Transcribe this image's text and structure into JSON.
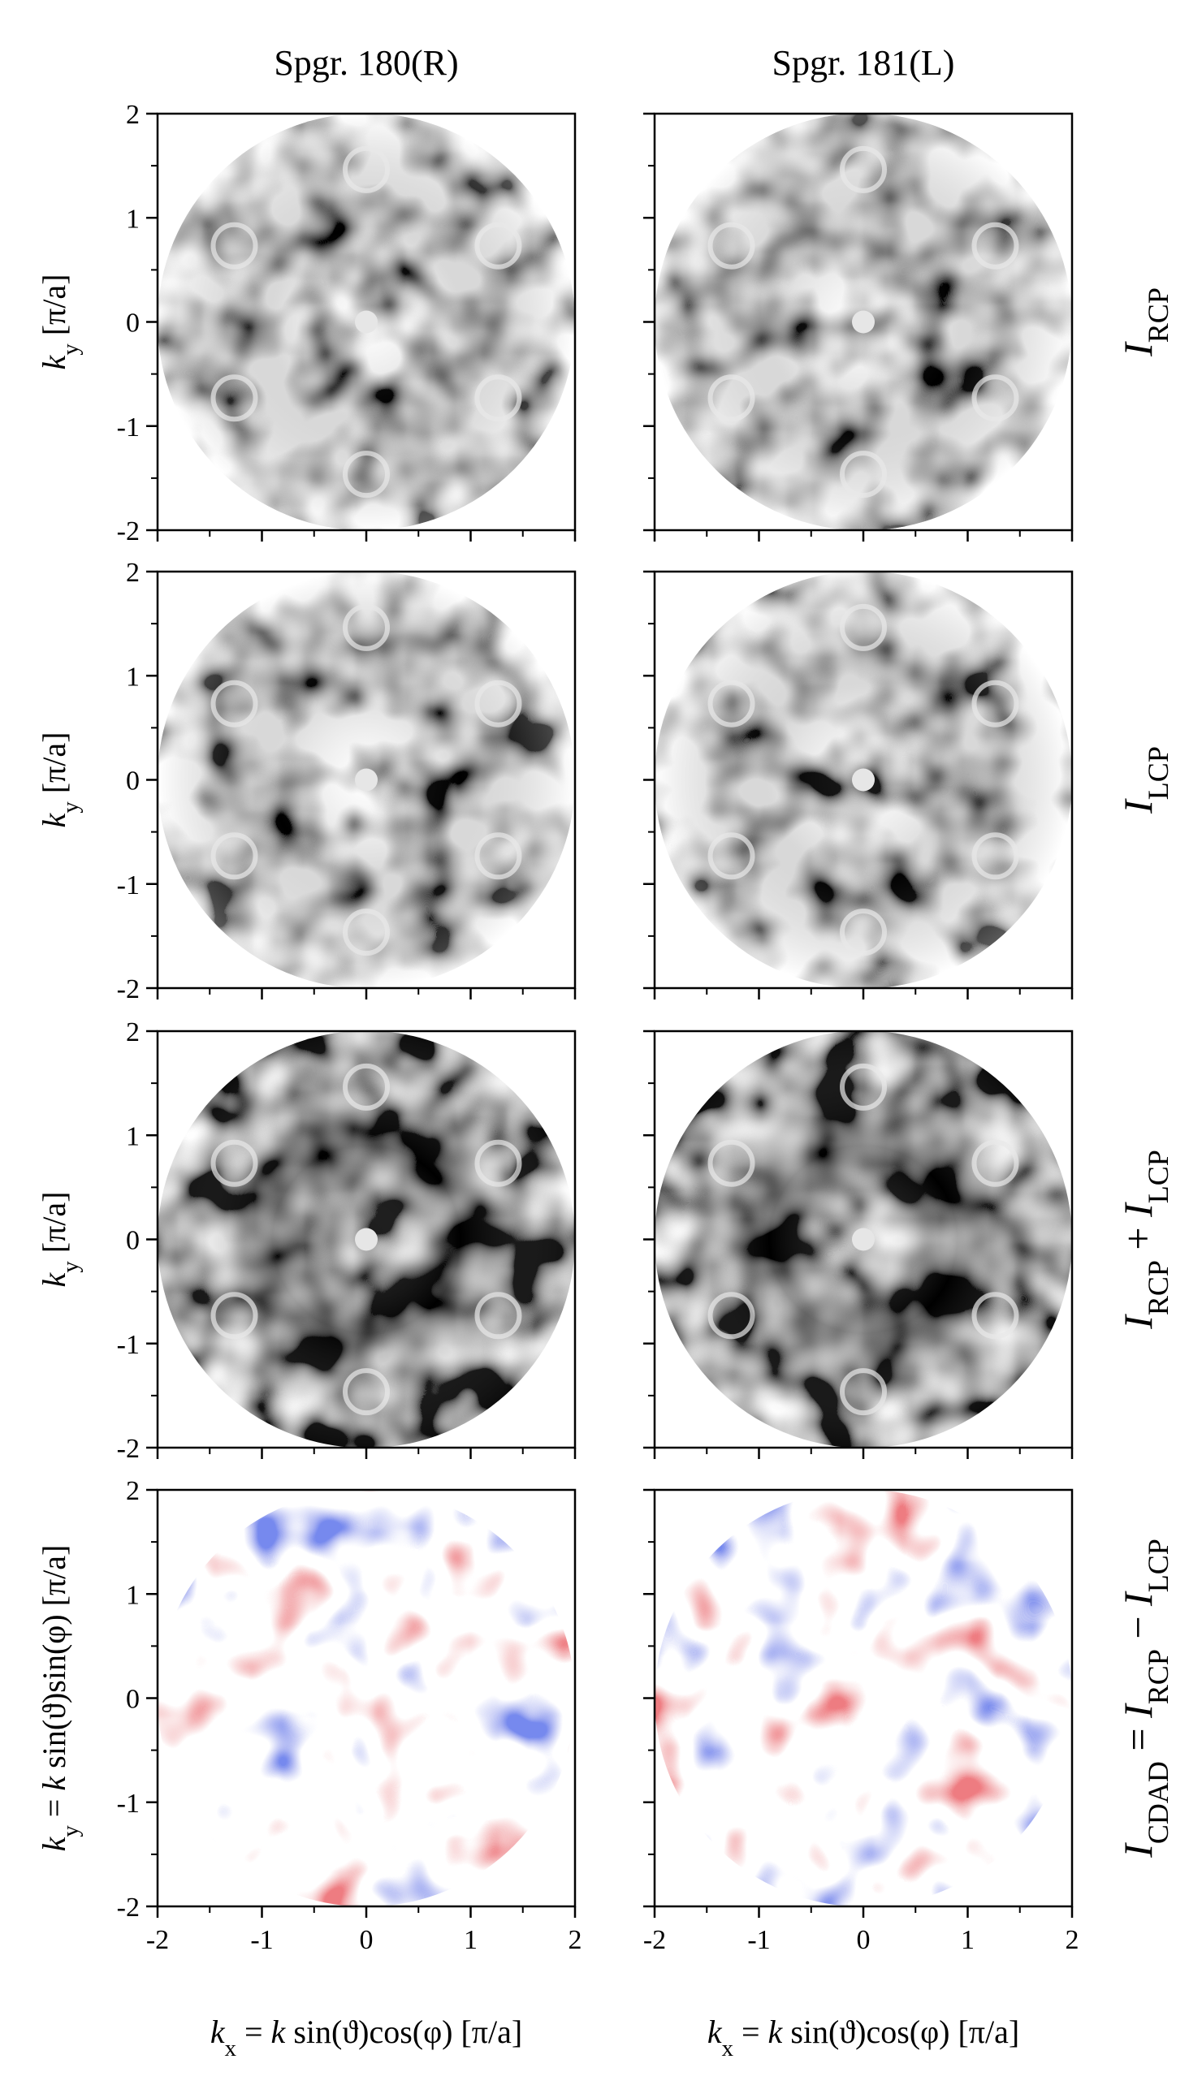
{
  "figure": {
    "column_titles": [
      "Spgr. 180(R)",
      "Spgr. 181(L)"
    ],
    "row_labels": [
      [
        {
          "text": "I",
          "style": "italic"
        },
        {
          "text": "RCP",
          "style": "sub"
        }
      ],
      [
        {
          "text": "I",
          "style": "italic"
        },
        {
          "text": "LCP",
          "style": "sub"
        }
      ],
      [
        {
          "text": "I",
          "style": "italic"
        },
        {
          "text": "RCP",
          "style": "sub"
        },
        {
          "text": " + "
        },
        {
          "text": "I",
          "style": "italic"
        },
        {
          "text": "LCP",
          "style": "sub"
        }
      ],
      [
        {
          "text": "I",
          "style": "italic"
        },
        {
          "text": "CDAD",
          "style": "sub"
        },
        {
          "text": " = "
        },
        {
          "text": "I",
          "style": "italic"
        },
        {
          "text": "RCP",
          "style": "sub"
        },
        {
          "text": " − "
        },
        {
          "text": "I",
          "style": "italic"
        },
        {
          "text": "LCP",
          "style": "sub"
        }
      ]
    ]
  },
  "chart_data": [
    {
      "type": "heatmap",
      "colormap": "gray",
      "xlim": [
        -2,
        2
      ],
      "ylim": [
        -2,
        2
      ],
      "xticks": [
        -2,
        -1,
        0,
        1,
        2
      ],
      "yticks": [
        -2,
        -1,
        0,
        1,
        2
      ],
      "xminor": [
        -1.5,
        -0.5,
        0.5,
        1.5
      ],
      "yminor": [
        -1.5,
        -0.5,
        0.5,
        1.5
      ],
      "show_xtick_labels": false,
      "show_ytick_labels": true,
      "ylabel": [
        {
          "text": "k",
          "style": "italic"
        },
        {
          "text": "y",
          "style": "sub"
        },
        {
          "text": " [π/a]"
        }
      ]
    },
    {
      "type": "heatmap",
      "colormap": "gray",
      "xlim": [
        -2,
        2
      ],
      "ylim": [
        -2,
        2
      ],
      "xticks": [
        -2,
        -1,
        0,
        1,
        2
      ],
      "yticks": [
        -2,
        -1,
        0,
        1,
        2
      ],
      "xminor": [
        -1.5,
        -0.5,
        0.5,
        1.5
      ],
      "yminor": [
        -1.5,
        -0.5,
        0.5,
        1.5
      ],
      "show_xtick_labels": false,
      "show_ytick_labels": false
    },
    {
      "type": "heatmap",
      "colormap": "gray",
      "xlim": [
        -2,
        2
      ],
      "ylim": [
        -2,
        2
      ],
      "xticks": [
        -2,
        -1,
        0,
        1,
        2
      ],
      "yticks": [
        -2,
        -1,
        0,
        1,
        2
      ],
      "xminor": [
        -1.5,
        -0.5,
        0.5,
        1.5
      ],
      "yminor": [
        -1.5,
        -0.5,
        0.5,
        1.5
      ],
      "show_xtick_labels": false,
      "show_ytick_labels": true,
      "ylabel": [
        {
          "text": "k",
          "style": "italic"
        },
        {
          "text": "y",
          "style": "sub"
        },
        {
          "text": " [π/a]"
        }
      ]
    },
    {
      "type": "heatmap",
      "colormap": "gray",
      "xlim": [
        -2,
        2
      ],
      "ylim": [
        -2,
        2
      ],
      "xticks": [
        -2,
        -1,
        0,
        1,
        2
      ],
      "yticks": [
        -2,
        -1,
        0,
        1,
        2
      ],
      "xminor": [
        -1.5,
        -0.5,
        0.5,
        1.5
      ],
      "yminor": [
        -1.5,
        -0.5,
        0.5,
        1.5
      ],
      "show_xtick_labels": false,
      "show_ytick_labels": false
    },
    {
      "type": "heatmap",
      "colormap": "dark-gray",
      "xlim": [
        -2,
        2
      ],
      "ylim": [
        -2,
        2
      ],
      "xticks": [
        -2,
        -1,
        0,
        1,
        2
      ],
      "yticks": [
        -2,
        -1,
        0,
        1,
        2
      ],
      "xminor": [
        -1.5,
        -0.5,
        0.5,
        1.5
      ],
      "yminor": [
        -1.5,
        -0.5,
        0.5,
        1.5
      ],
      "show_xtick_labels": false,
      "show_ytick_labels": true,
      "ylabel": [
        {
          "text": "k",
          "style": "italic"
        },
        {
          "text": "y",
          "style": "sub"
        },
        {
          "text": " [π/a]"
        }
      ]
    },
    {
      "type": "heatmap",
      "colormap": "dark-gray",
      "xlim": [
        -2,
        2
      ],
      "ylim": [
        -2,
        2
      ],
      "xticks": [
        -2,
        -1,
        0,
        1,
        2
      ],
      "yticks": [
        -2,
        -1,
        0,
        1,
        2
      ],
      "xminor": [
        -1.5,
        -0.5,
        0.5,
        1.5
      ],
      "yminor": [
        -1.5,
        -0.5,
        0.5,
        1.5
      ],
      "show_xtick_labels": false,
      "show_ytick_labels": false
    },
    {
      "type": "heatmap",
      "colormap": "bwr",
      "xlim": [
        -2,
        2
      ],
      "ylim": [
        -2,
        2
      ],
      "xticks": [
        -2,
        -1,
        0,
        1,
        2
      ],
      "yticks": [
        -2,
        -1,
        0,
        1,
        2
      ],
      "xminor": [
        -1.5,
        -0.5,
        0.5,
        1.5
      ],
      "yminor": [
        -1.5,
        -0.5,
        0.5,
        1.5
      ],
      "show_xtick_labels": true,
      "show_ytick_labels": true,
      "ylabel": [
        {
          "text": "k",
          "style": "italic"
        },
        {
          "text": "y",
          "style": "sub"
        },
        {
          "text": " = "
        },
        {
          "text": "k",
          "style": "italic"
        },
        {
          "text": " sin(ϑ)sin(φ)  [π/a]"
        }
      ],
      "xlabel": [
        {
          "text": "k",
          "style": "italic"
        },
        {
          "text": "x",
          "style": "sub"
        },
        {
          "text": " = "
        },
        {
          "text": "k",
          "style": "italic"
        },
        {
          "text": " sin(ϑ)cos(φ) [π/a]"
        }
      ]
    },
    {
      "type": "heatmap",
      "colormap": "bwr",
      "xlim": [
        -2,
        2
      ],
      "ylim": [
        -2,
        2
      ],
      "xticks": [
        -2,
        -1,
        0,
        1,
        2
      ],
      "yticks": [
        -2,
        -1,
        0,
        1,
        2
      ],
      "xminor": [
        -1.5,
        -0.5,
        0.5,
        1.5
      ],
      "yminor": [
        -1.5,
        -0.5,
        0.5,
        1.5
      ],
      "show_xtick_labels": true,
      "show_ytick_labels": false,
      "xlabel": [
        {
          "text": "k",
          "style": "italic"
        },
        {
          "text": "x",
          "style": "sub"
        },
        {
          "text": " = "
        },
        {
          "text": "k",
          "style": "italic"
        },
        {
          "text": " sin(ϑ)cos(φ) [π/a]"
        }
      ]
    }
  ]
}
